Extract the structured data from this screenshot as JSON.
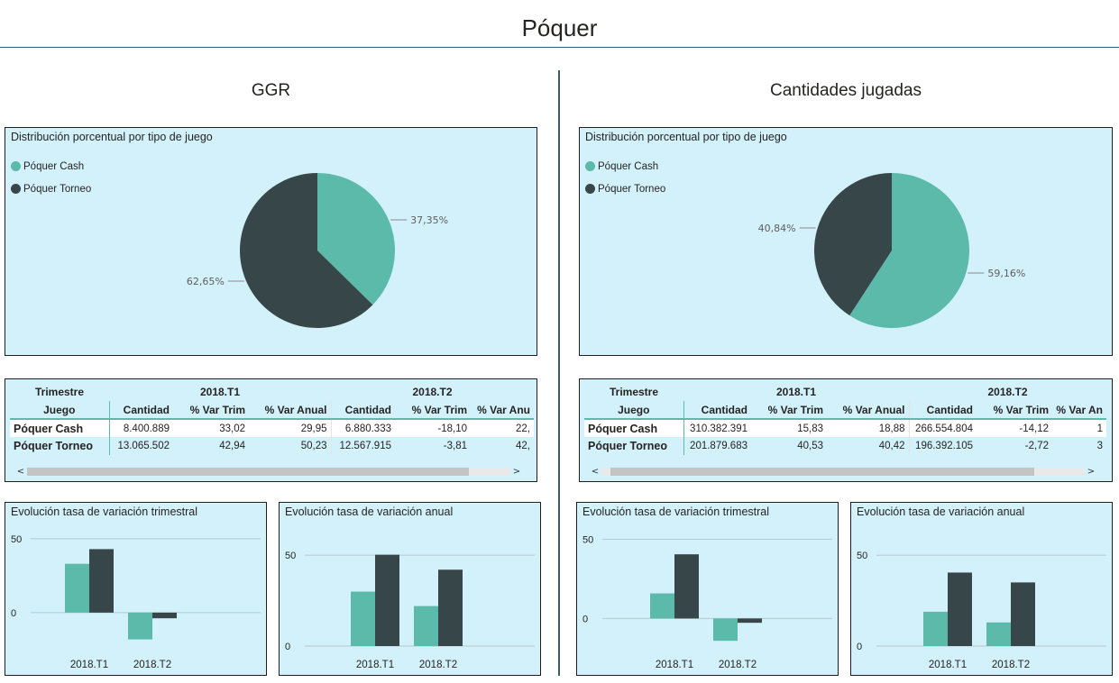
{
  "page": {
    "title": "Póquer"
  },
  "colors": {
    "cash": "#5bbaaa",
    "torneo": "#374649",
    "panel_bg": "#d2f1fb"
  },
  "legend": [
    {
      "label": "Póquer Cash",
      "color": "#5bbaaa"
    },
    {
      "label": "Póquer Torneo",
      "color": "#374649"
    }
  ],
  "sections": [
    {
      "title": "GGR",
      "pie": {
        "title": "Distribución porcentual por tipo de juego",
        "slices": [
          {
            "name": "Póquer Cash",
            "value": 37.35,
            "label": "37,35%"
          },
          {
            "name": "Póquer Torneo",
            "value": 62.65,
            "label": "62,65%"
          }
        ]
      },
      "table": {
        "corner_header": "Trimestre",
        "row_header": "Juego",
        "periods": [
          "2018.T1",
          "2018.T2"
        ],
        "columns": [
          "Cantidad",
          "% Var Trim",
          "% Var Anual",
          "Cantidad",
          "% Var Trim",
          "% Var Anu"
        ],
        "rows": [
          {
            "label": "Póquer Cash",
            "cells": [
              "8.400.889",
              "33,02",
              "29,95",
              "6.880.333",
              "-18,10",
              "22,"
            ]
          },
          {
            "label": "Póquer Torneo",
            "cells": [
              "13.065.502",
              "42,94",
              "50,23",
              "12.567.915",
              "-3,81",
              "42,"
            ]
          }
        ],
        "scroll_left": "<",
        "scroll_right": ">"
      },
      "bars_trim": {
        "title": "Evolución tasa de variación trimestral",
        "categories": [
          "2018.T1",
          "2018.T2"
        ],
        "series": [
          {
            "name": "Póquer Cash",
            "values": [
              33.02,
              -18.1
            ]
          },
          {
            "name": "Póquer Torneo",
            "values": [
              42.94,
              -3.81
            ]
          }
        ],
        "ylim": [
          -22,
          56
        ],
        "ticks": [
          0,
          50
        ],
        "tick_labels": [
          "0",
          "50"
        ]
      },
      "bars_anual": {
        "title": "Evolución tasa de variación anual",
        "categories": [
          "2018.T1",
          "2018.T2"
        ],
        "series": [
          {
            "name": "Póquer Cash",
            "values": [
              29.95,
              22.0
            ]
          },
          {
            "name": "Póquer Torneo",
            "values": [
              50.23,
              42.0
            ]
          }
        ],
        "ylim": [
          0,
          56
        ],
        "ticks": [
          0,
          50
        ],
        "tick_labels": [
          "0",
          "50"
        ]
      }
    },
    {
      "title": "Cantidades jugadas",
      "pie": {
        "title": "Distribución porcentual por tipo de juego",
        "slices": [
          {
            "name": "Póquer Cash",
            "value": 59.16,
            "label": "59,16%"
          },
          {
            "name": "Póquer Torneo",
            "value": 40.84,
            "label": "40,84%"
          }
        ]
      },
      "table": {
        "corner_header": "Trimestre",
        "row_header": "Juego",
        "periods": [
          "2018.T1",
          "2018.T2"
        ],
        "columns": [
          "Cantidad",
          "% Var Trim",
          "% Var Anual",
          "Cantidad",
          "% Var Trim",
          "% Var An"
        ],
        "rows": [
          {
            "label": "Póquer Cash",
            "cells": [
              "310.382.391",
              "15,83",
              "18,88",
              "266.554.804",
              "-14,12",
              "1"
            ]
          },
          {
            "label": "Póquer Torneo",
            "cells": [
              "201.879.683",
              "40,53",
              "40,42",
              "196.392.105",
              "-2,72",
              "3"
            ]
          }
        ],
        "scroll_left": "<",
        "scroll_right": ">"
      },
      "bars_trim": {
        "title": "Evolución tasa de variación trimestral",
        "categories": [
          "2018.T1",
          "2018.T2"
        ],
        "series": [
          {
            "name": "Póquer Cash",
            "values": [
              15.83,
              -14.12
            ]
          },
          {
            "name": "Póquer Torneo",
            "values": [
              40.53,
              -2.72
            ]
          }
        ],
        "ylim": [
          -18,
          56
        ],
        "ticks": [
          0,
          50
        ],
        "tick_labels": [
          "0",
          "50"
        ]
      },
      "bars_anual": {
        "title": "Evolución tasa de variación anual",
        "categories": [
          "2018.T1",
          "2018.T2"
        ],
        "series": [
          {
            "name": "Póquer Cash",
            "values": [
              18.88,
              13.0
            ]
          },
          {
            "name": "Póquer Torneo",
            "values": [
              40.42,
              35.0
            ]
          }
        ],
        "ylim": [
          0,
          56
        ],
        "ticks": [
          0,
          50
        ],
        "tick_labels": [
          "0",
          "50"
        ]
      }
    }
  ],
  "chart_data": [
    {
      "type": "pie",
      "title": "Distribución porcentual por tipo de juego",
      "categories": [
        "Póquer Cash",
        "Póquer Torneo"
      ],
      "values": [
        37.35,
        62.65
      ],
      "legend": "top-left"
    },
    {
      "type": "table",
      "columns": [
        "Juego",
        "2018.T1 Cantidad",
        "2018.T1 % Var Trim",
        "2018.T1 % Var Anual",
        "2018.T2 Cantidad",
        "2018.T2 % Var Trim",
        "2018.T2 % Var Anu"
      ],
      "rows": [
        [
          "Póquer Cash",
          "8.400.889",
          "33,02",
          "29,95",
          "6.880.333",
          "-18,10",
          "22,"
        ],
        [
          "Póquer Torneo",
          "13.065.502",
          "42,94",
          "50,23",
          "12.567.915",
          "-3,81",
          "42,"
        ]
      ]
    },
    {
      "type": "bar",
      "title": "Evolución tasa de variación trimestral",
      "categories": [
        "2018.T1",
        "2018.T2"
      ],
      "series": [
        {
          "name": "Póquer Cash",
          "values": [
            33.02,
            -18.1
          ]
        },
        {
          "name": "Póquer Torneo",
          "values": [
            42.94,
            -3.81
          ]
        }
      ],
      "grid": true
    },
    {
      "type": "bar",
      "title": "Evolución tasa de variación anual",
      "categories": [
        "2018.T1",
        "2018.T2"
      ],
      "series": [
        {
          "name": "Póquer Cash",
          "values": [
            29.95,
            22.0
          ]
        },
        {
          "name": "Póquer Torneo",
          "values": [
            50.23,
            42.0
          ]
        }
      ],
      "grid": true
    },
    {
      "type": "pie",
      "title": "Distribución porcentual por tipo de juego",
      "categories": [
        "Póquer Cash",
        "Póquer Torneo"
      ],
      "values": [
        59.16,
        40.84
      ],
      "legend": "top-left"
    },
    {
      "type": "table",
      "columns": [
        "Juego",
        "2018.T1 Cantidad",
        "2018.T1 % Var Trim",
        "2018.T1 % Var Anual",
        "2018.T2 Cantidad",
        "2018.T2 % Var Trim",
        "2018.T2 % Var An"
      ],
      "rows": [
        [
          "Póquer Cash",
          "310.382.391",
          "15,83",
          "18,88",
          "266.554.804",
          "-14,12",
          "1"
        ],
        [
          "Póquer Torneo",
          "201.879.683",
          "40,53",
          "40,42",
          "196.392.105",
          "-2,72",
          "3"
        ]
      ]
    },
    {
      "type": "bar",
      "title": "Evolución tasa de variación trimestral",
      "categories": [
        "2018.T1",
        "2018.T2"
      ],
      "series": [
        {
          "name": "Póquer Cash",
          "values": [
            15.83,
            -14.12
          ]
        },
        {
          "name": "Póquer Torneo",
          "values": [
            40.53,
            -2.72
          ]
        }
      ],
      "grid": true
    },
    {
      "type": "bar",
      "title": "Evolución tasa de variación anual",
      "categories": [
        "2018.T1",
        "2018.T2"
      ],
      "series": [
        {
          "name": "Póquer Cash",
          "values": [
            18.88,
            13.0
          ]
        },
        {
          "name": "Póquer Torneo",
          "values": [
            40.42,
            35.0
          ]
        }
      ],
      "grid": true
    }
  ]
}
